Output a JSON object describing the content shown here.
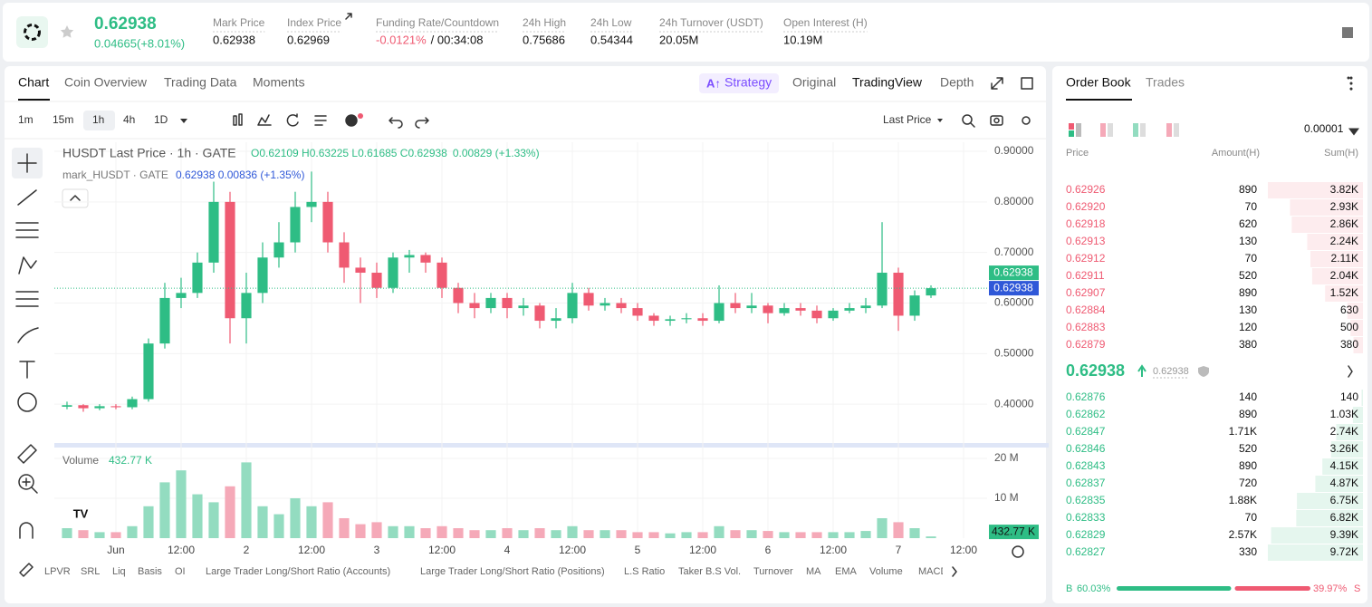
{
  "header": {
    "price": "0.62938",
    "change": "0.04665(+8.01%)",
    "stats": [
      {
        "label": "Mark Price",
        "value": "0.62938"
      },
      {
        "label": "Index Price",
        "value": "0.62969"
      },
      {
        "label": "Funding Rate/Countdown",
        "value": "-0.0121%",
        "extra": "/ 00:34:08"
      },
      {
        "label": "24h High",
        "value": "0.75686"
      },
      {
        "label": "24h Low",
        "value": "0.54344"
      },
      {
        "label": "24h Turnover (USDT)",
        "value": "20.05M"
      },
      {
        "label": "Open Interest (H)",
        "value": "10.19M"
      }
    ]
  },
  "chart_tabs": [
    "Chart",
    "Coin Overview",
    "Trading Data",
    "Moments"
  ],
  "view_tabs": [
    "Strategy",
    "Original",
    "TradingView",
    "Depth"
  ],
  "intervals": [
    "1m",
    "15m",
    "1h",
    "4h",
    "1D"
  ],
  "price_source": "Last Price",
  "indicators": [
    "LPVR",
    "SRL",
    "Liq",
    "Basis",
    "OI",
    "Large Trader Long/Short Ratio (Accounts)",
    "Large Trader Long/Short Ratio (Positions)",
    "L.S Ratio",
    "Taker B.S Vol.",
    "Turnover",
    "MA",
    "EMA",
    "Volume",
    "MACD"
  ],
  "chart_data": [
    {
      "type": "candlestick",
      "title": "HUSDT Last Price · 1h · GATE",
      "ohlc_legend": "O0.62109 H0.63225 L0.61685 C0.62938",
      "change_legend": "0.00829 (+1.33%)",
      "mark_legend": "mark_HUSDT · GATE",
      "mark_values": "0.62938 0.00836 (+1.35%)",
      "up_color": "#2ebd85",
      "down_color": "#ef5a72",
      "x": [
        -9,
        -6,
        -3,
        0,
        3,
        6,
        9,
        12,
        15,
        18,
        21,
        24,
        27,
        30,
        33,
        36,
        39,
        42,
        45,
        48,
        51,
        54,
        57,
        60,
        63,
        66,
        69,
        72,
        75,
        78,
        81,
        84,
        87,
        90,
        93,
        96,
        99,
        102,
        105,
        108,
        111,
        114,
        117,
        120,
        123,
        126,
        129,
        132,
        135,
        138,
        141,
        144,
        147,
        150
      ],
      "open": [
        0.395,
        0.398,
        0.392,
        0.396,
        0.394,
        0.41,
        0.52,
        0.61,
        0.62,
        0.68,
        0.8,
        0.57,
        0.62,
        0.69,
        0.72,
        0.79,
        0.8,
        0.72,
        0.67,
        0.66,
        0.63,
        0.69,
        0.695,
        0.68,
        0.63,
        0.6,
        0.59,
        0.61,
        0.59,
        0.595,
        0.565,
        0.57,
        0.62,
        0.595,
        0.6,
        0.59,
        0.575,
        0.565,
        0.568,
        0.57,
        0.565,
        0.6,
        0.59,
        0.595,
        0.58,
        0.59,
        0.585,
        0.57,
        0.585,
        0.59,
        0.595,
        0.66,
        0.575,
        0.615
      ],
      "high": [
        0.405,
        0.4,
        0.4,
        0.4,
        0.415,
        0.53,
        0.64,
        0.65,
        0.7,
        0.84,
        0.82,
        0.66,
        0.72,
        0.76,
        0.82,
        0.86,
        0.82,
        0.74,
        0.69,
        0.68,
        0.7,
        0.705,
        0.7,
        0.69,
        0.64,
        0.62,
        0.62,
        0.62,
        0.61,
        0.6,
        0.59,
        0.64,
        0.63,
        0.61,
        0.61,
        0.6,
        0.58,
        0.575,
        0.58,
        0.58,
        0.635,
        0.62,
        0.62,
        0.6,
        0.6,
        0.6,
        0.595,
        0.59,
        0.6,
        0.61,
        0.76,
        0.67,
        0.625,
        0.635
      ],
      "low": [
        0.39,
        0.385,
        0.388,
        0.39,
        0.39,
        0.405,
        0.51,
        0.59,
        0.61,
        0.66,
        0.52,
        0.52,
        0.6,
        0.67,
        0.7,
        0.76,
        0.7,
        0.64,
        0.6,
        0.61,
        0.62,
        0.66,
        0.66,
        0.61,
        0.58,
        0.57,
        0.58,
        0.57,
        0.575,
        0.55,
        0.55,
        0.56,
        0.585,
        0.585,
        0.58,
        0.565,
        0.555,
        0.555,
        0.56,
        0.555,
        0.56,
        0.58,
        0.58,
        0.56,
        0.575,
        0.575,
        0.56,
        0.565,
        0.58,
        0.58,
        0.59,
        0.545,
        0.565,
        0.61
      ],
      "close": [
        0.398,
        0.392,
        0.396,
        0.394,
        0.41,
        0.52,
        0.61,
        0.62,
        0.68,
        0.8,
        0.57,
        0.62,
        0.69,
        0.72,
        0.79,
        0.8,
        0.72,
        0.67,
        0.66,
        0.63,
        0.69,
        0.695,
        0.68,
        0.63,
        0.6,
        0.59,
        0.61,
        0.59,
        0.595,
        0.565,
        0.57,
        0.62,
        0.595,
        0.6,
        0.59,
        0.575,
        0.565,
        0.568,
        0.57,
        0.565,
        0.6,
        0.59,
        0.595,
        0.58,
        0.59,
        0.585,
        0.57,
        0.585,
        0.59,
        0.595,
        0.66,
        0.575,
        0.615,
        0.62938
      ],
      "xlim": [
        -11.33,
        160.33
      ],
      "ylim": [
        0.325,
        0.918
      ],
      "xticks": [
        {
          "value": 0,
          "label": "Jun"
        },
        {
          "value": 12,
          "label": "12:00"
        },
        {
          "value": 24,
          "label": "2"
        },
        {
          "value": 36,
          "label": "12:00"
        },
        {
          "value": 48,
          "label": "3"
        },
        {
          "value": 60,
          "label": "12:00"
        },
        {
          "value": 72,
          "label": "4"
        },
        {
          "value": 84,
          "label": "12:00"
        },
        {
          "value": 96,
          "label": "5"
        },
        {
          "value": 108,
          "label": "12:00"
        },
        {
          "value": 120,
          "label": "6"
        },
        {
          "value": 132,
          "label": "12:00"
        },
        {
          "value": 144,
          "label": "7"
        },
        {
          "value": 156,
          "label": "12:00"
        }
      ],
      "yticks": [
        {
          "value": 0.9,
          "label": "0.90000"
        },
        {
          "value": 0.8,
          "label": "0.80000"
        },
        {
          "value": 0.7,
          "label": "0.70000"
        },
        {
          "value": 0.6,
          "label": "0.60000"
        },
        {
          "value": 0.5,
          "label": "0.50000"
        },
        {
          "value": 0.4,
          "label": "0.40000"
        }
      ],
      "last_price": {
        "value": 0.62938,
        "label": "0.62938",
        "color": "#2ebd85"
      },
      "mark_price": {
        "value": 0.62938,
        "label": "0.62938",
        "color": "#2f58d8"
      },
      "grid": true
    },
    {
      "type": "bar",
      "title": "Volume",
      "up_color": "#93dcc0",
      "down_color": "#f5a9b8",
      "values": [
        2500000,
        2000000,
        1500000,
        1500000,
        3000000,
        8000000,
        14000000,
        17000000,
        11000000,
        9000000,
        13000000,
        19000000,
        8000000,
        6000000,
        10000000,
        8000000,
        9000000,
        5000000,
        3500000,
        4000000,
        3000000,
        3000000,
        2500000,
        3000000,
        2500000,
        2000000,
        2000000,
        2500000,
        2000000,
        2500000,
        2000000,
        3000000,
        2000000,
        2000000,
        2000000,
        1500000,
        1500000,
        1200000,
        1500000,
        1500000,
        3000000,
        2000000,
        2000000,
        1800000,
        1500000,
        1500000,
        1500000,
        1500000,
        1500000,
        1800000,
        5000000,
        4000000,
        2500000,
        432770
      ],
      "current": {
        "value": 432770,
        "label": "432.77 K"
      },
      "ylim": [
        0,
        21360000
      ],
      "yticks": [
        {
          "value": 10000000,
          "label": "10 M"
        },
        {
          "value": 20000000,
          "label": "20 M"
        }
      ]
    }
  ],
  "order_book": {
    "tabs": [
      "Order Book",
      "Trades"
    ],
    "precision": "0.00001",
    "columns": [
      "Price",
      "Amount(H)",
      "Sum(H)"
    ],
    "asks": [
      [
        "0.62926",
        "890",
        "3.82K"
      ],
      [
        "0.62920",
        "70",
        "2.93K"
      ],
      [
        "0.62918",
        "620",
        "2.86K"
      ],
      [
        "0.62913",
        "130",
        "2.24K"
      ],
      [
        "0.62912",
        "70",
        "2.11K"
      ],
      [
        "0.62911",
        "520",
        "2.04K"
      ],
      [
        "0.62907",
        "890",
        "1.52K"
      ],
      [
        "0.62884",
        "130",
        "630"
      ],
      [
        "0.62883",
        "120",
        "500"
      ],
      [
        "0.62879",
        "380",
        "380"
      ]
    ],
    "last_price": "0.62938",
    "mark_price": "0.62938",
    "bids": [
      [
        "0.62876",
        "140",
        "140"
      ],
      [
        "0.62862",
        "890",
        "1.03K"
      ],
      [
        "0.62847",
        "1.71K",
        "2.74K"
      ],
      [
        "0.62846",
        "520",
        "3.26K"
      ],
      [
        "0.62843",
        "890",
        "4.15K"
      ],
      [
        "0.62837",
        "720",
        "4.87K"
      ],
      [
        "0.62835",
        "1.88K",
        "6.75K"
      ],
      [
        "0.62833",
        "70",
        "6.82K"
      ],
      [
        "0.62829",
        "2.57K",
        "9.39K"
      ],
      [
        "0.62827",
        "330",
        "9.72K"
      ]
    ],
    "buy_label": "B",
    "buy_ratio": "60.03%",
    "sell_ratio": "39.97%",
    "sell_label": "S"
  }
}
